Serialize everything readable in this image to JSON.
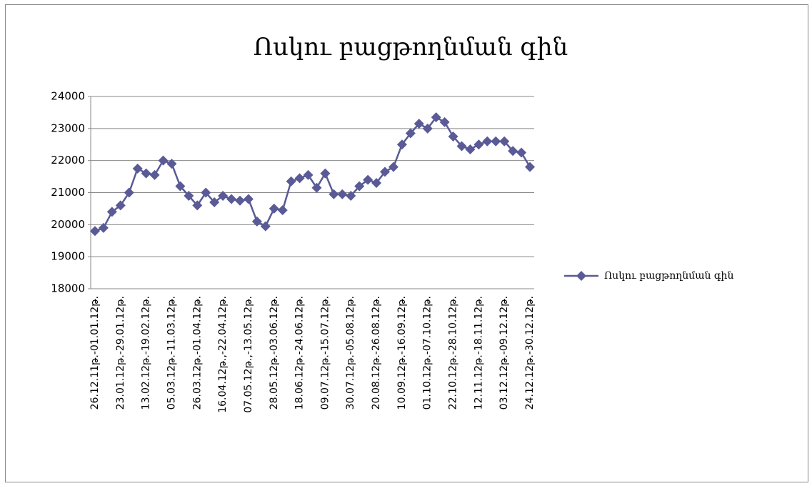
{
  "chart_data": {
    "type": "line",
    "title": "Ոսկու բացթողնման գին",
    "categories": [
      "26.12.11թ.-01.01.12թ.",
      null,
      null,
      "23.01.12թ.-29.01.12թ.",
      null,
      null,
      "13.02.12թ.-19.02.12թ.",
      null,
      null,
      "05.03.12թ.-11.03.12թ.",
      null,
      null,
      "26.03.12թ.-01.04.12թ.",
      null,
      null,
      "16.04.12թ.,-22.04.12թ.",
      null,
      null,
      "07.05.12թ.,-13.05.12թ.",
      null,
      null,
      "28.05.12թ.-03.06.12թ.",
      null,
      null,
      "18.06.12թ.-24.06.12թ.",
      null,
      null,
      "09.07.12թ.-15.07.12թ.",
      null,
      null,
      "30.07.12թ.-05.08.12թ.",
      null,
      null,
      "20.08.12թ.-26.08.12թ.",
      null,
      null,
      "10.09.12թ.-16.09.12թ.",
      null,
      null,
      "01.10.12թ.-07.10.12թ.",
      null,
      null,
      "22.10.12թ.-28.10.12թ.",
      null,
      null,
      "12.11.12թ.-18.11.12թ.",
      null,
      null,
      "03.12.12թ.-09.12.12թ.",
      null,
      null,
      "24.12.12թ.-30.12.12թ."
    ],
    "series": [
      {
        "name": "Ոսկու բացթողնման գին",
        "color": "#5a5a96",
        "values": [
          19800,
          19900,
          20400,
          20600,
          21000,
          21750,
          21600,
          21550,
          22000,
          21900,
          21200,
          20900,
          20600,
          21000,
          20700,
          20900,
          20800,
          20750,
          20800,
          20100,
          19950,
          20500,
          20450,
          21350,
          21450,
          21550,
          21150,
          21600,
          20950,
          20950,
          20900,
          21200,
          21400,
          21300,
          21650,
          21800,
          22500,
          22850,
          23150,
          23000,
          23350,
          23200,
          22750,
          22450,
          22350,
          22500,
          22600,
          22600,
          22600,
          22300,
          22250,
          21800
        ]
      }
    ],
    "ylim": [
      18000,
      24000
    ],
    "yticks": [
      18000,
      19000,
      20000,
      21000,
      22000,
      23000,
      24000
    ],
    "grid": true,
    "legend": "right"
  }
}
